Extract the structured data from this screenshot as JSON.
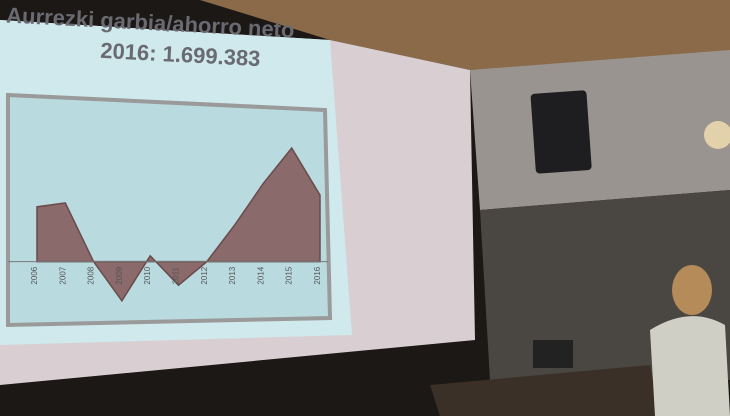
{
  "chart_data": {
    "type": "area",
    "title": "Aurrezki garbia/ahorro neto",
    "subtitle": "2016: 1.699.383",
    "categories": [
      "2006",
      "2007",
      "2008",
      "2009",
      "2010",
      "2011",
      "2012",
      "2013",
      "2014",
      "2015",
      "2016"
    ],
    "values": [
      1400000,
      1500000,
      0,
      -1000000,
      150000,
      -600000,
      0,
      950000,
      2000000,
      2900000,
      1699383
    ],
    "color": "#8a6a6a",
    "ylim": [
      -2000000,
      4000000
    ]
  }
}
